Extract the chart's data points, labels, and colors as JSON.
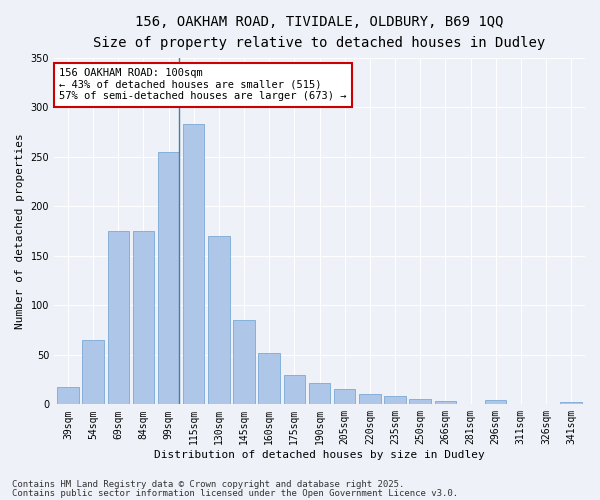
{
  "title1": "156, OAKHAM ROAD, TIVIDALE, OLDBURY, B69 1QQ",
  "title2": "Size of property relative to detached houses in Dudley",
  "xlabel": "Distribution of detached houses by size in Dudley",
  "ylabel": "Number of detached properties",
  "categories": [
    "39sqm",
    "54sqm",
    "69sqm",
    "84sqm",
    "99sqm",
    "115sqm",
    "130sqm",
    "145sqm",
    "160sqm",
    "175sqm",
    "190sqm",
    "205sqm",
    "220sqm",
    "235sqm",
    "250sqm",
    "266sqm",
    "281sqm",
    "296sqm",
    "311sqm",
    "326sqm",
    "341sqm"
  ],
  "values": [
    18,
    65,
    175,
    175,
    255,
    283,
    170,
    85,
    52,
    30,
    22,
    15,
    10,
    8,
    5,
    3,
    0,
    4,
    0,
    0,
    2
  ],
  "bar_color": "#aec6e8",
  "bar_edge_color": "#6a9fd0",
  "annotation_text": "156 OAKHAM ROAD: 100sqm\n← 43% of detached houses are smaller (515)\n57% of semi-detached houses are larger (673) →",
  "annotation_box_color": "#ffffff",
  "annotation_box_edge": "#cc0000",
  "footer1": "Contains HM Land Registry data © Crown copyright and database right 2025.",
  "footer2": "Contains public sector information licensed under the Open Government Licence v3.0.",
  "bg_color": "#eef2f8",
  "plot_bg_color": "#eef2f8",
  "ylim": [
    0,
    350
  ],
  "yticks": [
    0,
    50,
    100,
    150,
    200,
    250,
    300,
    350
  ],
  "title_fontsize": 10,
  "subtitle_fontsize": 9,
  "axis_label_fontsize": 8,
  "tick_fontsize": 7,
  "footer_fontsize": 6.5,
  "annotation_fontsize": 7.5,
  "vline_index": 4
}
